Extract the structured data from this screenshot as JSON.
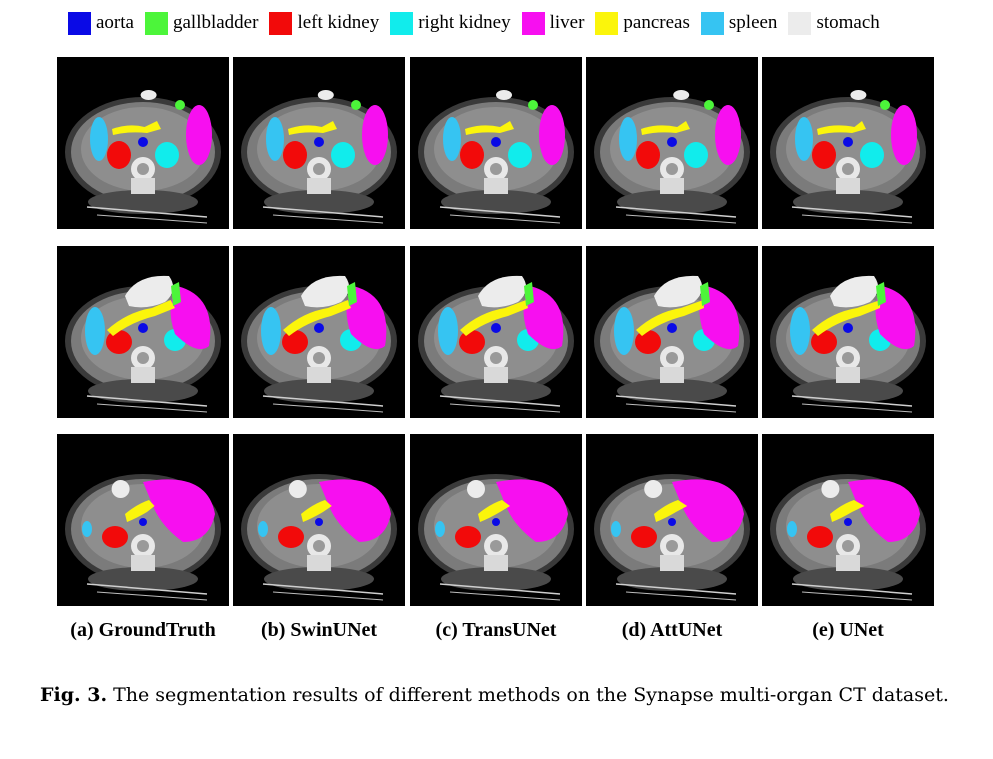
{
  "legend": [
    {
      "label": "aorta",
      "color": "#0a0ae6"
    },
    {
      "label": "gallbladder",
      "color": "#4cf53a"
    },
    {
      "label": "left kidney",
      "color": "#f20a0a"
    },
    {
      "label": "right kidney",
      "color": "#11ecec"
    },
    {
      "label": "liver",
      "color": "#f70ff0"
    },
    {
      "label": "pancreas",
      "color": "#fbf50b"
    },
    {
      "label": "spleen",
      "color": "#36c4f2"
    },
    {
      "label": "stomach",
      "color": "#ececec"
    }
  ],
  "columns": [
    {
      "label": "(a) GroundTruth"
    },
    {
      "label": "(b) SwinUNet"
    },
    {
      "label": "(c) TransUNet"
    },
    {
      "label": "(d) AttUNet"
    },
    {
      "label": "(e) UNet"
    }
  ],
  "rows": 3,
  "caption": {
    "fig_label": "Fig. 3.",
    "text": " The segmentation results of different methods on the Synapse multi-organ CT dataset."
  }
}
